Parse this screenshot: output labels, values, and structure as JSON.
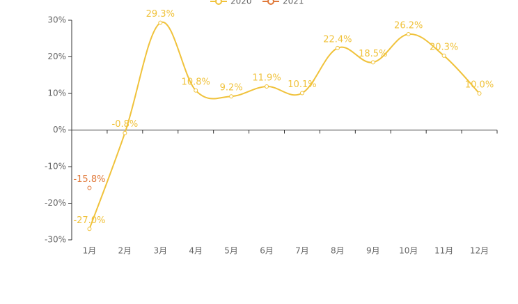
{
  "chart_data": {
    "type": "line",
    "categories": [
      "1月",
      "2月",
      "3月",
      "4月",
      "5月",
      "6月",
      "7月",
      "8月",
      "9月",
      "10月",
      "11月",
      "12月"
    ],
    "series": [
      {
        "name": "2020",
        "color": "#f0c23b",
        "smooth": true,
        "values": [
          -27.0,
          -0.8,
          29.3,
          10.8,
          9.2,
          11.9,
          10.1,
          22.4,
          18.5,
          26.2,
          20.3,
          10.0
        ],
        "value_labels": [
          "-27.0%",
          "-0.8%",
          "29.3%",
          "10.8%",
          "9.2%",
          "11.9%",
          "10.1%",
          "22.4%",
          "18.5%",
          "26.2%",
          "20.3%",
          "10.0%"
        ]
      },
      {
        "name": "2021",
        "color": "#e0793a",
        "values": [
          -15.8,
          null,
          null,
          null,
          null,
          null,
          null,
          null,
          null,
          null,
          null,
          null
        ],
        "value_labels": [
          "-15.8%",
          null,
          null,
          null,
          null,
          null,
          null,
          null,
          null,
          null,
          null,
          null
        ]
      }
    ],
    "ylim": [
      -30,
      30
    ],
    "yticks": [
      {
        "value": -30,
        "label": "-30%"
      },
      {
        "value": -20,
        "label": "-20%"
      },
      {
        "value": -10,
        "label": "-10%"
      },
      {
        "value": 0,
        "label": "0%"
      },
      {
        "value": 10,
        "label": "10%"
      },
      {
        "value": 20,
        "label": "20%"
      },
      {
        "value": 30,
        "label": "30%"
      }
    ],
    "legend": "top"
  }
}
